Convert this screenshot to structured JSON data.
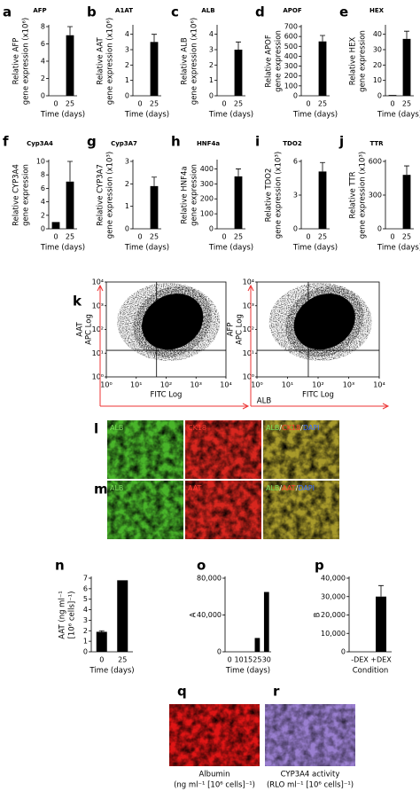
{
  "chart_data": [
    {
      "type": "bar",
      "panel": "a",
      "title": "AFP",
      "ylabel": [
        "Relative AFP",
        "gene expression (x10⁶)"
      ],
      "xlabel": "Time (days)",
      "categories": [
        "0",
        "25"
      ],
      "values": [
        0,
        7
      ],
      "errors": [
        null,
        1
      ],
      "ylim": [
        0,
        8
      ],
      "yticks": [
        0,
        2,
        4,
        6,
        8
      ],
      "color": "#000000"
    },
    {
      "type": "bar",
      "panel": "b",
      "title": "A1AT",
      "ylabel": [
        "Relative AAT",
        "gene expression (x10⁶)"
      ],
      "xlabel": "Time (days)",
      "categories": [
        "0",
        "25"
      ],
      "values": [
        0,
        3.5
      ],
      "errors": [
        null,
        0.5
      ],
      "ylim": [
        0,
        4.5
      ],
      "yticks": [
        0,
        1,
        2,
        3,
        4
      ],
      "color": "#000000"
    },
    {
      "type": "bar",
      "panel": "c",
      "title": "ALB",
      "ylabel": [
        "Relative ALB",
        "gene expression (x10⁶)"
      ],
      "xlabel": "Time (days)",
      "categories": [
        "0",
        "25"
      ],
      "values": [
        0,
        3
      ],
      "errors": [
        null,
        0.5
      ],
      "ylim": [
        0,
        4.5
      ],
      "yticks": [
        0,
        1,
        2,
        3,
        4
      ],
      "color": "#000000"
    },
    {
      "type": "bar",
      "panel": "d",
      "title": "APOF",
      "ylabel": [
        "Relative APOF",
        "gene expression"
      ],
      "xlabel": "Time (days)",
      "categories": [
        "0",
        "25"
      ],
      "values": [
        0,
        550
      ],
      "errors": [
        null,
        60
      ],
      "ylim": [
        0,
        700
      ],
      "yticks": [
        0,
        100,
        200,
        300,
        400,
        500,
        600,
        700
      ],
      "color": "#000000"
    },
    {
      "type": "bar",
      "panel": "e",
      "title": "HEX",
      "ylabel": [
        "Relative HEX",
        "gene expression"
      ],
      "xlabel": "Time (days)",
      "categories": [
        "0",
        "25"
      ],
      "values": [
        0.5,
        37
      ],
      "errors": [
        null,
        5
      ],
      "ylim": [
        0,
        45
      ],
      "yticks": [
        0,
        10,
        20,
        30,
        40
      ],
      "color": "#000000"
    },
    {
      "type": "bar",
      "panel": "f",
      "title": "Cyp3A4",
      "ylabel": [
        "Relative CYP3A4",
        "gene expression"
      ],
      "xlabel": "Time (days)",
      "categories": [
        "0",
        "25"
      ],
      "values": [
        1,
        7
      ],
      "errors": [
        null,
        3
      ],
      "ylim": [
        0,
        10
      ],
      "yticks": [
        0,
        2,
        4,
        6,
        8,
        10
      ],
      "color": "#000000"
    },
    {
      "type": "bar",
      "panel": "g",
      "title": "Cyp3A7",
      "ylabel": [
        "Relative CYP3A7",
        "gene expression (x10³)"
      ],
      "xlabel": "Time (days)",
      "categories": [
        "0",
        "25"
      ],
      "values": [
        0,
        1.9
      ],
      "errors": [
        null,
        0.4
      ],
      "ylim": [
        0,
        3
      ],
      "yticks": [
        0,
        1,
        2,
        3
      ],
      "color": "#000000"
    },
    {
      "type": "bar",
      "panel": "h",
      "title": "HNF4a",
      "ylabel": [
        "Relative HNF4a",
        "gene expression"
      ],
      "xlabel": "Time (days)",
      "categories": [
        "0",
        "25"
      ],
      "values": [
        0,
        350
      ],
      "errors": [
        null,
        50
      ],
      "ylim": [
        0,
        450
      ],
      "yticks": [
        0,
        100,
        200,
        300,
        400
      ],
      "color": "#000000"
    },
    {
      "type": "bar",
      "panel": "i",
      "title": "TDO2",
      "ylabel": [
        "Relative TDO2",
        "gene expression (x10³)"
      ],
      "xlabel": "Time (days)",
      "categories": [
        "0",
        "25"
      ],
      "values": [
        0,
        5.1
      ],
      "errors": [
        null,
        0.8
      ],
      "ylim": [
        0,
        6
      ],
      "yticks": [
        0,
        3,
        6
      ],
      "color": "#000000"
    },
    {
      "type": "bar",
      "panel": "j",
      "title": "TTR",
      "ylabel": [
        "Relative TTR",
        "gene expression (x10³)"
      ],
      "xlabel": "Time (days)",
      "categories": [
        "0",
        "25"
      ],
      "values": [
        0,
        480
      ],
      "errors": [
        null,
        80
      ],
      "ylim": [
        0,
        600
      ],
      "yticks": [
        0,
        300,
        600
      ],
      "color": "#000000"
    },
    {
      "type": "bar",
      "panel": "n",
      "ylabel": [
        "AAT (ng ml⁻¹",
        "[10⁶ cells]⁻¹)"
      ],
      "xlabel": "Time (days)",
      "categories": [
        "0",
        "25"
      ],
      "values": [
        1.9,
        6.8
      ],
      "errors": [
        0.1,
        null
      ],
      "ylim": [
        0,
        7
      ],
      "yticks": [
        0,
        1,
        2,
        3,
        4,
        5,
        6,
        7
      ],
      "color": "#000000"
    },
    {
      "type": "bar",
      "panel": "o",
      "ylabel": [
        "A"
      ],
      "xlabel": "Time (days)",
      "categories": [
        "0",
        "10",
        "15",
        "25",
        "30"
      ],
      "values": [
        0,
        0,
        0,
        15000,
        65000
      ],
      "errors": [
        null,
        null,
        null,
        null,
        null
      ],
      "ylim": [
        0,
        80000
      ],
      "yticks": [
        0,
        {
          "value": 40000,
          "label": "40,000"
        },
        {
          "value": 80000,
          "label": "80,000"
        }
      ],
      "color": "#000000"
    },
    {
      "type": "bar",
      "panel": "p",
      "ylabel": [
        "B"
      ],
      "xlabel": "Condition",
      "categories": [
        "-DEX",
        "+DEX"
      ],
      "values": [
        0,
        30000
      ],
      "errors": [
        null,
        6000
      ],
      "ylim": [
        0,
        40000
      ],
      "yticks": [
        0,
        {
          "value": 10000,
          "label": "10,000"
        },
        {
          "value": 20000,
          "label": "20,000"
        },
        {
          "value": 30000,
          "label": "30,000"
        },
        {
          "value": 40000,
          "label": "40,000"
        }
      ],
      "color": "#000000"
    }
  ],
  "flow": {
    "panel": "k",
    "shared_xlabel": "ALB",
    "plots": [
      {
        "ylabel": [
          "AAT",
          "APC Log"
        ],
        "xlabel": "FITC Log"
      },
      {
        "ylabel": [
          "AFP",
          "APC Log"
        ],
        "xlabel": "FITC Log"
      }
    ],
    "log": true,
    "xlim": [
      1,
      10000
    ],
    "ylim": [
      1,
      10000
    ],
    "xticks": [
      {
        "value": 1,
        "label": "10⁰"
      },
      {
        "value": 10,
        "label": "10¹"
      },
      {
        "value": 100,
        "label": "10²"
      },
      {
        "value": 1000,
        "label": "10³"
      },
      {
        "value": 10000,
        "label": "10⁴"
      }
    ],
    "yticks": [
      {
        "value": 1,
        "label": "10⁰"
      },
      {
        "value": 10,
        "label": "10¹"
      },
      {
        "value": 100,
        "label": "10²"
      },
      {
        "value": 1000,
        "label": "10³"
      },
      {
        "value": 10000,
        "label": "10⁴"
      }
    ]
  },
  "micrographs": {
    "rows": [
      {
        "panel": "l",
        "labels": [
          [
            "ALB"
          ],
          [
            "CK18"
          ],
          [
            "ALB",
            "/",
            "CK18",
            "/",
            "DAPI"
          ]
        ]
      },
      {
        "panel": "m",
        "labels": [
          [
            "ALB"
          ],
          [
            "AAT"
          ],
          [
            "ALB",
            "/",
            "AAT",
            "/",
            "DAPI"
          ]
        ]
      }
    ],
    "bottom": [
      {
        "panel": "q",
        "caption": [
          "Albumin",
          "(ng ml⁻¹ [10⁶ cells]⁻¹)"
        ]
      },
      {
        "panel": "r",
        "caption": [
          "CYP3A4 activity",
          "(RLO ml⁻¹ [10⁶ cells]⁻¹)"
        ]
      }
    ]
  }
}
